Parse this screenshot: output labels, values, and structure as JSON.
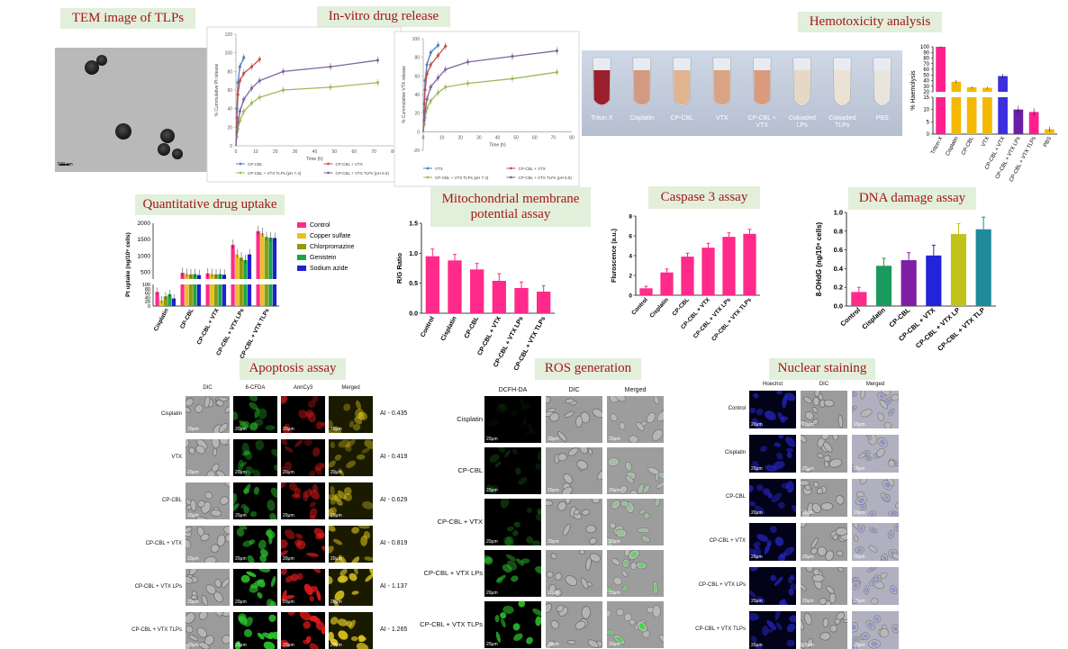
{
  "headers": {
    "tem": "TEM image of TLPs",
    "release": "In-vitro drug release",
    "hemo": "Hemotoxicity analysis",
    "uptake": "Quantitative drug uptake",
    "mito_line1": "Mitochondrial membrane",
    "mito_line2": "potential assay",
    "caspase": "Caspase 3 assay",
    "dna": "DNA damage assay",
    "apoptosis": "Apoptosis assay",
    "ros": "ROS generation",
    "nuclear": "Nuclear staining"
  },
  "tem": {
    "scale_label": "500 nm"
  },
  "hemo_photo": {
    "tubes": [
      "Triton X",
      "Cisplatin",
      "CP-CBL",
      "VTX",
      "CP-CBL +\nVTX",
      "Coloaded\nLPs",
      "Coloaded\nTLPs",
      "PBS"
    ],
    "colors": [
      "#9a1e2c",
      "#d29a82",
      "#e1b48f",
      "#d9a484",
      "#d99a7e",
      "#e6d8c6",
      "#ece2d4",
      "#e9e4dc"
    ]
  },
  "apoptosis": {
    "columns": [
      "DIC",
      "6-CFDA",
      "AnnCy3",
      "Merged"
    ],
    "rows": [
      "Cisplatin",
      "VTX",
      "CP-CBL",
      "CP-CBL + VTX",
      "CP-CBL + VTX LPs",
      "CP-CBL + VTX TLPs"
    ],
    "ai": [
      "AI - 0.435",
      "AI - 0.419",
      "AI - 0.629",
      "AI - 0.819",
      "AI - 1.137",
      "AI - 1.265"
    ],
    "scale": "20μm",
    "intensity": [
      0.5,
      0.45,
      0.6,
      0.75,
      0.95,
      1.0
    ]
  },
  "ros": {
    "columns": [
      "DCFH-DA",
      "DIC",
      "Merged"
    ],
    "rows": [
      "Cisplatin",
      "CP-CBL",
      "CP-CBL + VTX",
      "CP-CBL + VTX LPs",
      "CP-CBL + VTX TLPs"
    ],
    "scale": "20μm",
    "intensity": [
      0.02,
      0.2,
      0.3,
      0.6,
      0.9
    ]
  },
  "nuclear": {
    "columns": [
      "Hoechst",
      "DIC",
      "Merged"
    ],
    "rows": [
      "Control",
      "Cisplatin",
      "CP-CBL",
      "CP-CBL + VTX",
      "CP-CBL + VTX LPs",
      "CP-CBL + VTX TLPs"
    ],
    "scale": "20μm"
  },
  "chart_data": [
    {
      "id": "release-pt",
      "type": "line",
      "ylabel": "% Cummulative Pt release",
      "xlabel": "Time (h)",
      "xlim": [
        0,
        80
      ],
      "ylim": [
        0,
        120
      ],
      "xticks": [
        0,
        10,
        20,
        30,
        40,
        50,
        60,
        70,
        80
      ],
      "yticks": [
        0,
        20,
        40,
        60,
        80,
        100,
        120
      ],
      "legend": [
        "CP-CBL",
        "CP-CBL + VTX",
        "CP-CBL + VTX TLPs (pH 7.4)",
        "CP-CBL + VTX TLPs (pH 5.5)"
      ],
      "series": [
        {
          "name": "CP-CBL",
          "color": "#4f81bd",
          "x": [
            0,
            0.5,
            1,
            2,
            4
          ],
          "y": [
            0,
            40,
            68,
            85,
            95
          ]
        },
        {
          "name": "CP-CBL + VTX",
          "color": "#c0504d",
          "x": [
            0,
            0.5,
            1,
            2,
            4,
            8,
            12
          ],
          "y": [
            0,
            30,
            55,
            70,
            78,
            85,
            93
          ]
        },
        {
          "name": "CP-CBL + VTX TLPs (pH 7.4)",
          "color": "#9bbb59",
          "x": [
            0,
            0.5,
            1,
            2,
            4,
            8,
            12,
            24,
            48,
            72
          ],
          "y": [
            0,
            10,
            18,
            27,
            37,
            46,
            52,
            60,
            63,
            68
          ]
        },
        {
          "name": "CP-CBL + VTX TLPs (pH 5.5)",
          "color": "#8064a2",
          "x": [
            0,
            0.5,
            1,
            2,
            4,
            8,
            12,
            24,
            48,
            72
          ],
          "y": [
            0,
            15,
            25,
            37,
            50,
            62,
            70,
            80,
            85,
            92
          ]
        }
      ]
    },
    {
      "id": "release-vtx",
      "type": "line",
      "ylabel": "% Cummulative VTX release",
      "xlabel": "Time (h)",
      "xlim": [
        0,
        80
      ],
      "ylim": [
        -20,
        100
      ],
      "xticks": [
        0,
        10,
        20,
        30,
        40,
        50,
        60,
        70,
        80
      ],
      "yticks": [
        -20,
        0,
        20,
        40,
        60,
        80,
        100
      ],
      "legend": [
        "VTX",
        "CP-CBL + VTX",
        "CP-CBL + VTX TLPs (pH 7.4)",
        "CP-CBL + VTX TLPs (pH 5.5)"
      ],
      "series": [
        {
          "name": "VTX",
          "color": "#4f81bd",
          "x": [
            0,
            0.5,
            1,
            2,
            4,
            8
          ],
          "y": [
            0,
            30,
            55,
            72,
            85,
            93
          ]
        },
        {
          "name": "CP-CBL + VTX",
          "color": "#c0504d",
          "x": [
            0,
            0.5,
            1,
            2,
            4,
            8,
            12
          ],
          "y": [
            0,
            22,
            45,
            62,
            72,
            82,
            92
          ]
        },
        {
          "name": "CP-CBL + VTX TLPs (pH 7.4)",
          "color": "#9bbb59",
          "x": [
            0,
            0.5,
            1,
            2,
            4,
            8,
            12,
            24,
            48,
            72
          ],
          "y": [
            0,
            8,
            15,
            25,
            33,
            42,
            48,
            52,
            57,
            64
          ]
        },
        {
          "name": "CP-CBL + VTX TLPs (pH 5.5)",
          "color": "#8064a2",
          "x": [
            0,
            0.5,
            1,
            2,
            4,
            8,
            12,
            24,
            48,
            72
          ],
          "y": [
            0,
            12,
            22,
            35,
            48,
            58,
            67,
            75,
            81,
            87
          ]
        }
      ]
    },
    {
      "id": "hemolysis",
      "type": "bar",
      "ylabel": "% Haemolysis",
      "categories": [
        "Triton-X",
        "Cisplatin",
        "CP-CBL",
        "VTX",
        "CP-CBL + VTX",
        "CP-CBL + VTX LPs",
        "CP-CBL + VTX TLPs",
        "PBS"
      ],
      "values": [
        100,
        38,
        28,
        27,
        48,
        10,
        9,
        2
      ],
      "errors": [
        1,
        3,
        2,
        2,
        4,
        1.5,
        1.5,
        1
      ],
      "colors": [
        "#ff1f8e",
        "#f5b800",
        "#f5b800",
        "#f5b800",
        "#3b2fe0",
        "#6a1fa8",
        "#ff1f8e",
        "#f5b800"
      ],
      "ylim": [
        0,
        100
      ],
      "yticks_low": [
        0,
        5,
        10,
        15
      ],
      "yticks_high": [
        20,
        30,
        40,
        50,
        60,
        70,
        80,
        90,
        100
      ],
      "break": [
        15,
        20
      ]
    },
    {
      "id": "uptake",
      "type": "bar",
      "ylabel": "Pt uptake (ng/10⁶ cells)",
      "categories": [
        "Cisplatin",
        "CP-CBL",
        "CP-CBL + VTX",
        "CP-CBL + VTX LPs",
        "CP-CBL + VTX TLPs"
      ],
      "series": [
        {
          "name": "Control",
          "color": "#ff2a8a",
          "values": [
            65,
            490,
            470,
            1340,
            1760
          ]
        },
        {
          "name": "Copper sulfate",
          "color": "#e8c021",
          "values": [
            25,
            460,
            450,
            1050,
            1700
          ]
        },
        {
          "name": "Chlorpromazine",
          "color": "#8f9a10",
          "values": [
            45,
            440,
            440,
            950,
            1580
          ]
        },
        {
          "name": "Genistein",
          "color": "#1aa64a",
          "values": [
            55,
            450,
            450,
            880,
            1560
          ]
        },
        {
          "name": "Sodium azide",
          "color": "#1f1fd6",
          "values": [
            35,
            420,
            430,
            1050,
            1550
          ]
        }
      ],
      "yticks_low": [
        0,
        20,
        40,
        60,
        80,
        100
      ],
      "yticks_high": [
        500,
        1000,
        1500,
        2000
      ],
      "break": [
        100,
        300
      ]
    },
    {
      "id": "mito",
      "type": "bar",
      "ylabel": "R/G Ratio",
      "categories": [
        "Control",
        "Cisplatin",
        "CP-CBL",
        "CP-CBL + VTX",
        "CP-CBL + VTX LPs",
        "CP-CBL + VTX TLPs"
      ],
      "values": [
        0.95,
        0.88,
        0.73,
        0.54,
        0.42,
        0.36
      ],
      "errors": [
        0.12,
        0.1,
        0.1,
        0.12,
        0.1,
        0.1
      ],
      "color": "#ff2a8a",
      "ylim": [
        0,
        1.5
      ],
      "yticks": [
        0.0,
        0.5,
        1.0,
        1.5
      ]
    },
    {
      "id": "caspase",
      "type": "bar",
      "ylabel": "Fluroscence (a.u.)",
      "categories": [
        "Control",
        "Cisplatin",
        "CP-CBL",
        "CP-CBL + VTX",
        "CP-CBL + VTX LPs",
        "CP-CBL + VTX TLPs"
      ],
      "values": [
        0.7,
        2.3,
        3.9,
        4.8,
        5.9,
        6.2
      ],
      "errors": [
        0.2,
        0.35,
        0.35,
        0.45,
        0.4,
        0.45
      ],
      "color": "#ff2a8a",
      "ylim": [
        0,
        8
      ],
      "yticks": [
        0,
        2,
        4,
        6,
        8
      ]
    },
    {
      "id": "dna",
      "type": "bar",
      "ylabel": "8-OHdG (ng/10⁶ cells)",
      "categories": [
        "Control",
        "Cisplatin",
        "CP-CBL",
        "CP-CBL + VTX",
        "CP-CBL + VTX LP",
        "CP-CBL + VTX TLP"
      ],
      "values": [
        0.15,
        0.43,
        0.49,
        0.54,
        0.77,
        0.82
      ],
      "errors": [
        0.05,
        0.08,
        0.08,
        0.11,
        0.11,
        0.13
      ],
      "colors": [
        "#ff2a8a",
        "#1a9a5c",
        "#7e1fa6",
        "#2323d9",
        "#c2c21a",
        "#1f8a9a"
      ],
      "ylim": [
        0,
        1.0
      ],
      "yticks": [
        0.0,
        0.2,
        0.4,
        0.6,
        0.8,
        1.0
      ]
    }
  ]
}
